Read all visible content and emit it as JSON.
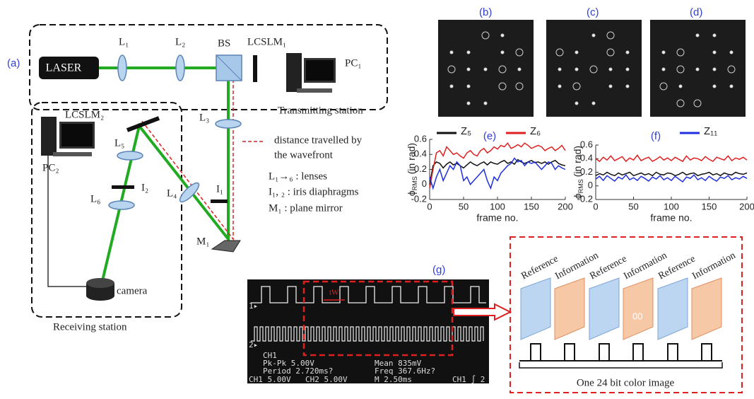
{
  "panel_labels": {
    "a": "(a)",
    "b": "(b)",
    "c": "(c)",
    "d": "(d)",
    "g": "(g)"
  },
  "setup": {
    "laser": "LASER",
    "L1": "L₁",
    "L2": "L₂",
    "BS": "BS",
    "LCSLM1": "LCSLM₁",
    "PC1": "PC₁",
    "transmitting": "Transmitting station",
    "L3": "L₃",
    "I1": "I₁",
    "M1": "M₁",
    "L4": "L₄",
    "LCSLM2": "LCSLM₂",
    "PC2": "PC₂",
    "L5": "L₅",
    "I2": "I₂",
    "L6": "L₆",
    "camera": "camera",
    "receiving": "Receiving station"
  },
  "legend": {
    "line1": "distance travelled by",
    "line2": "the wavefront",
    "lenses": "L₁→₆ : lenses",
    "iris": "I₁, ₂ : iris diaphragms",
    "mirror": "M₁ : plane mirror"
  },
  "chart_data": [
    {
      "type": "line",
      "title": "(e)",
      "xlabel": "frame no.",
      "ylabel": "ϕ",
      "ylabel_sub": "RMS",
      "ylabel_unit": "(in rad)",
      "x": [
        0,
        5,
        10,
        15,
        20,
        25,
        30,
        35,
        40,
        45,
        50,
        55,
        60,
        65,
        70,
        75,
        80,
        85,
        90,
        95,
        100,
        105,
        110,
        115,
        120,
        125,
        130,
        135,
        140,
        145,
        150,
        155,
        160,
        165,
        170,
        175,
        180,
        185,
        190,
        195,
        200
      ],
      "xlim": [
        0,
        200
      ],
      "xticks": [
        0,
        50,
        100,
        150,
        200
      ],
      "ylim": [
        -0.2,
        0.6
      ],
      "yticks": [
        -0.2,
        0,
        0.2,
        0.4,
        0.6
      ],
      "series": [
        {
          "name": "Z₅",
          "color": "#111111",
          "values": [
            0.0,
            0.25,
            0.3,
            0.28,
            0.22,
            0.27,
            0.3,
            0.26,
            0.28,
            0.25,
            0.22,
            0.26,
            0.3,
            0.27,
            0.25,
            0.28,
            0.3,
            0.26,
            0.3,
            0.28,
            0.27,
            0.3,
            0.32,
            0.28,
            0.3,
            0.27,
            0.33,
            0.3,
            0.28,
            0.3,
            0.32,
            0.29,
            0.3,
            0.28,
            0.3,
            0.27,
            0.3,
            0.32,
            0.28,
            0.26,
            0.25
          ]
        },
        {
          "name": "Z₆",
          "color": "#e02020",
          "values": [
            -0.05,
            0.2,
            0.42,
            0.45,
            0.38,
            0.5,
            0.45,
            0.4,
            0.42,
            0.38,
            0.35,
            0.42,
            0.45,
            0.4,
            0.38,
            0.45,
            0.48,
            0.42,
            0.45,
            0.5,
            0.47,
            0.52,
            0.5,
            0.55,
            0.48,
            0.5,
            0.53,
            0.5,
            0.55,
            0.52,
            0.48,
            0.5,
            0.52,
            0.5,
            0.45,
            0.48,
            0.5,
            0.45,
            0.48,
            0.52,
            0.45
          ]
        },
        {
          "color": "#1f2fe0",
          "values": [
            0.1,
            -0.05,
            0.1,
            0.2,
            0.05,
            0.15,
            0.25,
            0.2,
            0.3,
            0.25,
            0.05,
            0.1,
            0.0,
            0.05,
            0.1,
            0.15,
            0.2,
            0.05,
            -0.05,
            0.1,
            0.05,
            0.15,
            0.2,
            0.25,
            0.28,
            0.35,
            0.3,
            0.32,
            0.25,
            0.3,
            0.28,
            0.3,
            0.25,
            0.2,
            0.25,
            0.3,
            0.28,
            0.2,
            0.25,
            0.22,
            0.2
          ]
        }
      ]
    },
    {
      "type": "line",
      "title": "(f)",
      "xlabel": "frame no.",
      "ylabel": "ϕ",
      "ylabel_sub": "RMS",
      "ylabel_unit": "(in rad)",
      "x": [
        0,
        5,
        10,
        15,
        20,
        25,
        30,
        35,
        40,
        45,
        50,
        55,
        60,
        65,
        70,
        75,
        80,
        85,
        90,
        95,
        100,
        105,
        110,
        115,
        120,
        125,
        130,
        135,
        140,
        145,
        150,
        155,
        160,
        165,
        170,
        175,
        180,
        185,
        190,
        195,
        200
      ],
      "xlim": [
        0,
        200
      ],
      "xticks": [
        0,
        50,
        100,
        150,
        200
      ],
      "ylim": [
        -0.2,
        0.6
      ],
      "yticks": [
        -0.2,
        0,
        0.2,
        0.4,
        0.6
      ],
      "series": [
        {
          "color": "#e02020",
          "values": [
            0.4,
            0.36,
            0.42,
            0.38,
            0.44,
            0.37,
            0.4,
            0.43,
            0.36,
            0.41,
            0.38,
            0.45,
            0.37,
            0.4,
            0.42,
            0.36,
            0.39,
            0.43,
            0.38,
            0.41,
            0.37,
            0.42,
            0.39,
            0.36,
            0.44,
            0.38,
            0.41,
            0.4,
            0.37,
            0.43,
            0.39,
            0.36,
            0.42,
            0.4,
            0.38,
            0.44,
            0.37,
            0.41,
            0.39,
            0.42,
            0.38
          ]
        },
        {
          "color": "#111111",
          "values": [
            0.15,
            0.18,
            0.16,
            0.2,
            0.17,
            0.15,
            0.19,
            0.16,
            0.18,
            0.2,
            0.15,
            0.17,
            0.19,
            0.16,
            0.18,
            0.15,
            0.2,
            0.17,
            0.16,
            0.19,
            0.18,
            0.15,
            0.17,
            0.2,
            0.16,
            0.18,
            0.19,
            0.15,
            0.17,
            0.18,
            0.2,
            0.16,
            0.18,
            0.15,
            0.19,
            0.17,
            0.16,
            0.2,
            0.18,
            0.17,
            0.19
          ]
        },
        {
          "name": "Z₁₁",
          "color": "#1f2fe0",
          "values": [
            0.1,
            0.14,
            0.08,
            0.15,
            0.11,
            0.07,
            0.13,
            0.1,
            0.16,
            0.09,
            0.12,
            0.08,
            0.14,
            0.11,
            0.07,
            0.13,
            0.1,
            0.15,
            0.09,
            0.12,
            0.08,
            0.14,
            0.1,
            0.06,
            0.13,
            0.11,
            0.16,
            0.09,
            0.12,
            0.08,
            0.14,
            0.1,
            0.07,
            0.13,
            0.11,
            0.15,
            0.09,
            0.12,
            0.1,
            0.14,
            0.11
          ]
        }
      ]
    }
  ],
  "oscilloscope": {
    "tw": "tW",
    "ch1_marker": "1▸",
    "ch2_marker": "2▸",
    "ch": "CH1",
    "pkpk": "Pk-Pk 5.00V",
    "period": "Period 2.720ms?",
    "mean": "Mean 835mV",
    "freq": "Freq 367.6Hz?",
    "ch1_scale": "CH1  5.00V",
    "ch2_scale": "CH2  5.00V",
    "timebase": "M 2.50ms",
    "trigger": "CH1 ∫ 2"
  },
  "encoding": {
    "labels": [
      "Reference",
      "Information",
      "Reference",
      "Information",
      "Reference",
      "Information"
    ],
    "stray": "00",
    "caption": "One 24 bit color image"
  }
}
